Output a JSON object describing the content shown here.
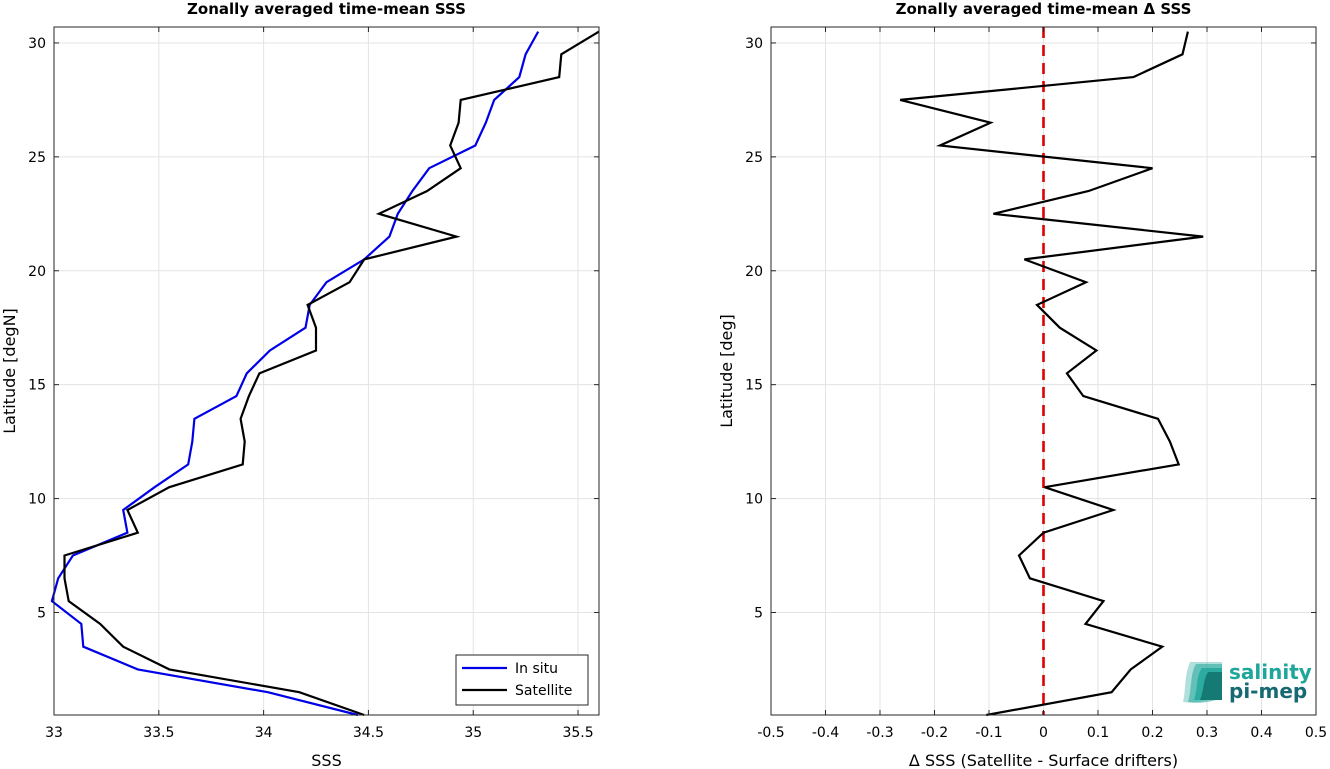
{
  "chart_data": [
    {
      "type": "line",
      "title": "Zonally averaged time-mean SSS",
      "xlabel": "SSS",
      "ylabel": "Latitude [degN]",
      "xlim": [
        33,
        35.6
      ],
      "ylim": [
        0.5,
        30.7
      ],
      "xticks": [
        33,
        33.5,
        34,
        34.5,
        35,
        35.5
      ],
      "xtick_labels": [
        "33",
        "33.5",
        "34",
        "34.5",
        "35",
        "35.5"
      ],
      "yticks": [
        5,
        10,
        15,
        20,
        25,
        30
      ],
      "ytick_labels": [
        "5",
        "10",
        "15",
        "20",
        "25",
        "30"
      ],
      "grid": true,
      "legend": "bottom-right",
      "series": [
        {
          "name": "In situ",
          "color": "#0000e6",
          "y": [
            0.5,
            1.5,
            2.5,
            3.5,
            4.5,
            5.5,
            6.5,
            7.5,
            8.5,
            9.5,
            10.5,
            11.5,
            12.5,
            13.5,
            14.5,
            15.5,
            16.5,
            17.5,
            18.5,
            19.5,
            20.5,
            21.5,
            22.5,
            23.5,
            24.5,
            25.5,
            26.5,
            27.5,
            28.5,
            29.5,
            30.5
          ],
          "x": [
            34.45,
            34.02,
            33.4,
            33.14,
            33.13,
            32.99,
            33.02,
            33.09,
            33.35,
            33.33,
            33.48,
            33.64,
            33.66,
            33.67,
            33.87,
            33.92,
            34.03,
            34.2,
            34.22,
            34.3,
            34.48,
            34.6,
            34.64,
            34.71,
            34.79,
            35.01,
            35.06,
            35.1,
            35.22,
            35.25,
            35.31
          ]
        },
        {
          "name": "Satellite",
          "color": "#000000",
          "y": [
            0.5,
            1.5,
            2.5,
            3.5,
            4.5,
            5.5,
            6.5,
            7.5,
            8.5,
            9.5,
            10.5,
            11.5,
            12.5,
            13.5,
            14.5,
            15.5,
            16.5,
            17.5,
            18.5,
            19.5,
            20.5,
            21.5,
            22.5,
            23.5,
            24.5,
            25.5,
            26.5,
            27.5,
            28.5,
            29.5,
            30.5
          ],
          "x": [
            34.48,
            34.17,
            33.55,
            33.33,
            33.22,
            33.07,
            33.05,
            33.05,
            33.4,
            33.35,
            33.55,
            33.9,
            33.91,
            33.89,
            33.93,
            33.98,
            34.25,
            34.25,
            34.21,
            34.41,
            34.48,
            34.92,
            34.55,
            34.78,
            34.94,
            34.89,
            34.93,
            34.94,
            35.41,
            35.42,
            35.6
          ]
        }
      ]
    },
    {
      "type": "line",
      "title": "Zonally averaged time-mean Δ SSS",
      "xlabel": "Δ SSS (Satellite - Surface drifters)",
      "ylabel": "Latitude [deg]",
      "xlim": [
        -0.5,
        0.5
      ],
      "ylim": [
        0.5,
        30.7
      ],
      "xticks": [
        -0.5,
        -0.4,
        -0.3,
        -0.2,
        -0.1,
        0,
        0.1,
        0.2,
        0.3,
        0.4,
        0.5
      ],
      "xtick_labels": [
        "-0.5",
        "-0.4",
        "-0.3",
        "-0.2",
        "-0.1",
        "0",
        "0.1",
        "0.2",
        "0.3",
        "0.4",
        "0.5"
      ],
      "yticks": [
        5,
        10,
        15,
        20,
        25,
        30
      ],
      "ytick_labels": [
        "5",
        "10",
        "15",
        "20",
        "25",
        "30"
      ],
      "grid": true,
      "reference_line": {
        "x": 0,
        "color": "#e00000",
        "style": "dashed"
      },
      "series": [
        {
          "color": "#000000",
          "y": [
            0.5,
            1.5,
            2.5,
            3.5,
            4.5,
            5.5,
            6.5,
            7.5,
            8.5,
            9.5,
            10.5,
            11.5,
            12.5,
            13.5,
            14.5,
            15.5,
            16.5,
            17.5,
            18.5,
            19.5,
            20.5,
            21.5,
            22.5,
            23.5,
            24.5,
            25.5,
            26.5,
            27.5,
            28.5,
            29.5,
            30.5
          ],
          "x": [
            -0.105,
            0.125,
            0.16,
            0.218,
            0.077,
            0.11,
            -0.025,
            -0.045,
            0.0,
            0.128,
            0.002,
            0.248,
            0.232,
            0.21,
            0.073,
            0.043,
            0.097,
            0.03,
            -0.012,
            0.078,
            -0.035,
            0.293,
            -0.092,
            0.083,
            0.2,
            -0.19,
            -0.097,
            -0.263,
            0.165,
            0.255,
            0.265
          ]
        }
      ]
    }
  ],
  "logo": {
    "line1": "salinity",
    "line2": "pi-mep",
    "color": "#1fa69a",
    "color_dark": "#176a72"
  }
}
